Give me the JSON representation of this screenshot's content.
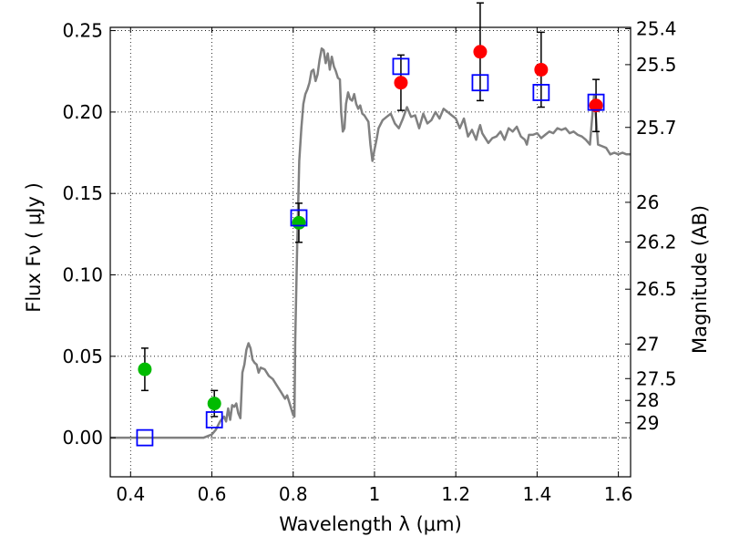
{
  "chart_data": {
    "type": "scatter",
    "xlabel": "Wavelength  λ (μm)",
    "ylabel_left": "Flux  Fν  ( μJy )",
    "ylabel_right": "Magnitude (AB)",
    "xlim": [
      0.35,
      1.63
    ],
    "ylim": [
      -0.024,
      0.252
    ],
    "x_ticks": [
      {
        "value": 0.4,
        "label": "0.4"
      },
      {
        "value": 0.6,
        "label": "0.6"
      },
      {
        "value": 0.8,
        "label": "0.8"
      },
      {
        "value": 1.0,
        "label": "1"
      },
      {
        "value": 1.2,
        "label": "1.2"
      },
      {
        "value": 1.4,
        "label": "1.4"
      },
      {
        "value": 1.6,
        "label": "1.6"
      }
    ],
    "y_ticks": [
      {
        "value": 0.0,
        "label": "0.00"
      },
      {
        "value": 0.05,
        "label": "0.05"
      },
      {
        "value": 0.1,
        "label": "0.10"
      },
      {
        "value": 0.15,
        "label": "0.15"
      },
      {
        "value": 0.2,
        "label": "0.20"
      },
      {
        "value": 0.25,
        "label": "0.25"
      }
    ],
    "magnitude_ticks": [
      {
        "value": 25.4,
        "label": "25.4"
      },
      {
        "value": 25.5,
        "label": "25.5"
      },
      {
        "value": 25.7,
        "label": "25.7"
      },
      {
        "value": 26,
        "label": "26"
      },
      {
        "value": 26.2,
        "label": "26.2"
      },
      {
        "value": 26.5,
        "label": "26.5"
      },
      {
        "value": 27,
        "label": "27"
      },
      {
        "value": 27.5,
        "label": "27.5"
      },
      {
        "value": 28,
        "label": "28"
      },
      {
        "value": 29,
        "label": "29"
      }
    ],
    "grid": true,
    "zero_line": true,
    "colors": {
      "green": "#00bb00",
      "red": "#ff0000",
      "blue": "#0000ff",
      "model": "#808080",
      "errorbar": "#000000"
    },
    "series": [
      {
        "name": "observed-green",
        "marker": "circle",
        "color": "green",
        "points": [
          {
            "x": 0.435,
            "y": 0.042,
            "err": 0.013
          },
          {
            "x": 0.606,
            "y": 0.021,
            "err": 0.008
          },
          {
            "x": 0.814,
            "y": 0.132,
            "err": 0.012
          }
        ]
      },
      {
        "name": "observed-red",
        "marker": "circle",
        "color": "red",
        "points": [
          {
            "x": 1.065,
            "y": 0.218,
            "err": 0.017
          },
          {
            "x": 1.26,
            "y": 0.237,
            "err": 0.03
          },
          {
            "x": 1.41,
            "y": 0.226,
            "err": 0.023
          },
          {
            "x": 1.545,
            "y": 0.204,
            "err": 0.016
          }
        ]
      },
      {
        "name": "model-photometry",
        "marker": "square",
        "color": "blue",
        "points": [
          {
            "x": 0.435,
            "y": 0.0
          },
          {
            "x": 0.606,
            "y": 0.011
          },
          {
            "x": 0.814,
            "y": 0.135
          },
          {
            "x": 1.065,
            "y": 0.228
          },
          {
            "x": 1.26,
            "y": 0.218
          },
          {
            "x": 1.41,
            "y": 0.212
          },
          {
            "x": 1.545,
            "y": 0.206
          }
        ]
      },
      {
        "name": "model-spectrum",
        "marker": "line",
        "color": "model",
        "points": [
          [
            0.35,
            0.0
          ],
          [
            0.58,
            0.0
          ],
          [
            0.6,
            0.002
          ],
          [
            0.61,
            0.005
          ],
          [
            0.62,
            0.01
          ],
          [
            0.63,
            0.013
          ],
          [
            0.635,
            0.01
          ],
          [
            0.64,
            0.018
          ],
          [
            0.645,
            0.011
          ],
          [
            0.65,
            0.02
          ],
          [
            0.655,
            0.019
          ],
          [
            0.66,
            0.021
          ],
          [
            0.665,
            0.015
          ],
          [
            0.67,
            0.012
          ],
          [
            0.675,
            0.04
          ],
          [
            0.68,
            0.045
          ],
          [
            0.685,
            0.054
          ],
          [
            0.69,
            0.058
          ],
          [
            0.695,
            0.055
          ],
          [
            0.7,
            0.048
          ],
          [
            0.705,
            0.046
          ],
          [
            0.71,
            0.045
          ],
          [
            0.715,
            0.04
          ],
          [
            0.72,
            0.043
          ],
          [
            0.73,
            0.042
          ],
          [
            0.74,
            0.038
          ],
          [
            0.75,
            0.036
          ],
          [
            0.76,
            0.032
          ],
          [
            0.77,
            0.028
          ],
          [
            0.78,
            0.024
          ],
          [
            0.785,
            0.026
          ],
          [
            0.79,
            0.022
          ],
          [
            0.795,
            0.018
          ],
          [
            0.8,
            0.014
          ],
          [
            0.803,
            0.013
          ],
          [
            0.805,
            0.06
          ],
          [
            0.81,
            0.12
          ],
          [
            0.815,
            0.17
          ],
          [
            0.82,
            0.19
          ],
          [
            0.825,
            0.205
          ],
          [
            0.83,
            0.211
          ],
          [
            0.835,
            0.214
          ],
          [
            0.84,
            0.218
          ],
          [
            0.845,
            0.225
          ],
          [
            0.85,
            0.226
          ],
          [
            0.855,
            0.219
          ],
          [
            0.86,
            0.223
          ],
          [
            0.865,
            0.232
          ],
          [
            0.87,
            0.239
          ],
          [
            0.875,
            0.238
          ],
          [
            0.88,
            0.23
          ],
          [
            0.885,
            0.236
          ],
          [
            0.89,
            0.226
          ],
          [
            0.895,
            0.234
          ],
          [
            0.9,
            0.228
          ],
          [
            0.905,
            0.225
          ],
          [
            0.91,
            0.221
          ],
          [
            0.915,
            0.22
          ],
          [
            0.918,
            0.2
          ],
          [
            0.922,
            0.188
          ],
          [
            0.926,
            0.19
          ],
          [
            0.93,
            0.205
          ],
          [
            0.935,
            0.212
          ],
          [
            0.94,
            0.208
          ],
          [
            0.945,
            0.207
          ],
          [
            0.95,
            0.211
          ],
          [
            0.955,
            0.205
          ],
          [
            0.96,
            0.202
          ],
          [
            0.965,
            0.204
          ],
          [
            0.97,
            0.199
          ],
          [
            0.975,
            0.198
          ],
          [
            0.98,
            0.196
          ],
          [
            0.985,
            0.194
          ],
          [
            0.99,
            0.18
          ],
          [
            0.995,
            0.17
          ],
          [
            1.0,
            0.177
          ],
          [
            1.005,
            0.183
          ],
          [
            1.01,
            0.19
          ],
          [
            1.02,
            0.195
          ],
          [
            1.03,
            0.197
          ],
          [
            1.04,
            0.199
          ],
          [
            1.05,
            0.193
          ],
          [
            1.06,
            0.19
          ],
          [
            1.07,
            0.196
          ],
          [
            1.08,
            0.203
          ],
          [
            1.09,
            0.197
          ],
          [
            1.1,
            0.198
          ],
          [
            1.11,
            0.19
          ],
          [
            1.12,
            0.199
          ],
          [
            1.13,
            0.193
          ],
          [
            1.14,
            0.195
          ],
          [
            1.15,
            0.2
          ],
          [
            1.16,
            0.196
          ],
          [
            1.17,
            0.202
          ],
          [
            1.18,
            0.2
          ],
          [
            1.19,
            0.198
          ],
          [
            1.2,
            0.196
          ],
          [
            1.21,
            0.19
          ],
          [
            1.22,
            0.196
          ],
          [
            1.23,
            0.185
          ],
          [
            1.24,
            0.189
          ],
          [
            1.25,
            0.183
          ],
          [
            1.255,
            0.188
          ],
          [
            1.26,
            0.192
          ],
          [
            1.265,
            0.187
          ],
          [
            1.27,
            0.185
          ],
          [
            1.28,
            0.181
          ],
          [
            1.29,
            0.184
          ],
          [
            1.3,
            0.185
          ],
          [
            1.31,
            0.188
          ],
          [
            1.32,
            0.183
          ],
          [
            1.33,
            0.19
          ],
          [
            1.34,
            0.188
          ],
          [
            1.35,
            0.191
          ],
          [
            1.36,
            0.185
          ],
          [
            1.37,
            0.183
          ],
          [
            1.375,
            0.18
          ],
          [
            1.38,
            0.186
          ],
          [
            1.39,
            0.186
          ],
          [
            1.4,
            0.187
          ],
          [
            1.41,
            0.184
          ],
          [
            1.42,
            0.186
          ],
          [
            1.43,
            0.188
          ],
          [
            1.44,
            0.187
          ],
          [
            1.45,
            0.19
          ],
          [
            1.46,
            0.189
          ],
          [
            1.47,
            0.19
          ],
          [
            1.48,
            0.187
          ],
          [
            1.49,
            0.188
          ],
          [
            1.5,
            0.186
          ],
          [
            1.51,
            0.185
          ],
          [
            1.52,
            0.183
          ],
          [
            1.53,
            0.18
          ],
          [
            1.535,
            0.195
          ],
          [
            1.54,
            0.21
          ],
          [
            1.545,
            0.196
          ],
          [
            1.55,
            0.18
          ],
          [
            1.56,
            0.179
          ],
          [
            1.57,
            0.178
          ],
          [
            1.58,
            0.174
          ],
          [
            1.59,
            0.175
          ],
          [
            1.6,
            0.174
          ],
          [
            1.61,
            0.175
          ],
          [
            1.62,
            0.174
          ],
          [
            1.63,
            0.174
          ]
        ]
      }
    ]
  }
}
